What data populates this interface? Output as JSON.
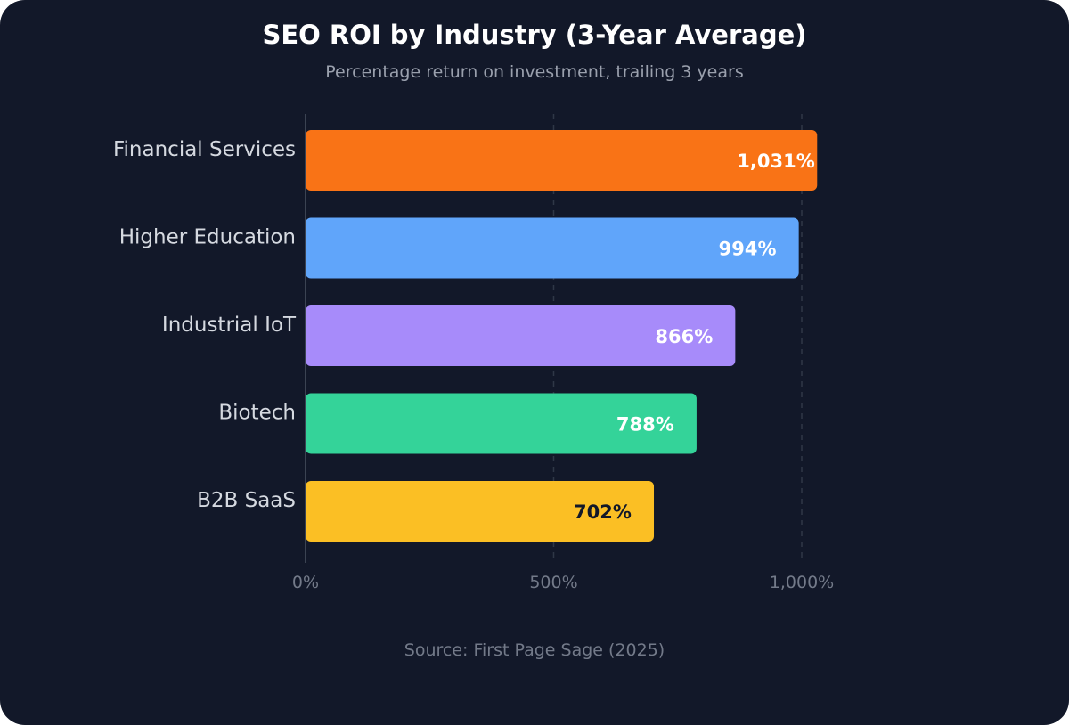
{
  "chart_data": {
    "type": "bar",
    "orientation": "horizontal",
    "title": "SEO ROI by Industry (3-Year Average)",
    "subtitle": "Percentage return on investment, trailing 3 years",
    "categories": [
      "Financial Services",
      "Higher Education",
      "Industrial IoT",
      "Biotech",
      "B2B SaaS"
    ],
    "values": [
      1031,
      994,
      866,
      788,
      702
    ],
    "value_labels": [
      "1,031%",
      "994%",
      "866%",
      "788%",
      "702%"
    ],
    "colors": [
      "#f97316",
      "#60a5fa",
      "#a78bfa",
      "#34d399",
      "#fbbf24"
    ],
    "label_colors": [
      "#ffffff",
      "#ffffff",
      "#ffffff",
      "#ffffff",
      "#121829"
    ],
    "xlim": [
      0,
      1300
    ],
    "xticks": [
      0,
      500,
      1000
    ],
    "xtick_labels": [
      "0%",
      "500%",
      "1,000%"
    ],
    "xlabel": "",
    "ylabel": "",
    "grid": true,
    "source": "Source: First Page Sage (2025)"
  }
}
